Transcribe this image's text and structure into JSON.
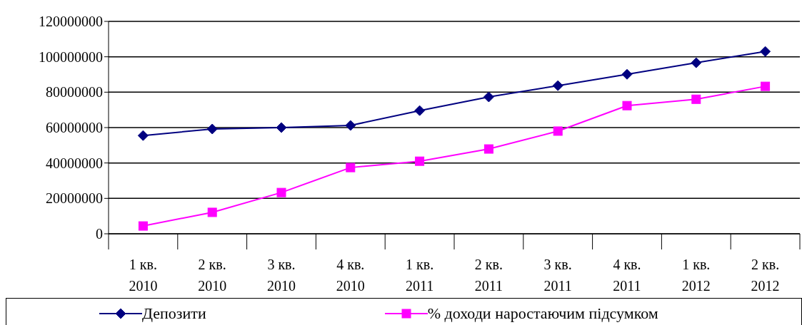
{
  "chart_data": {
    "type": "line",
    "categories": [
      "1 кв. 2010",
      "2 кв. 2010",
      "3 кв. 2010",
      "4 кв. 2010",
      "1 кв. 2011",
      "2 кв. 2011",
      "3 кв. 2011",
      "4 кв. 2011",
      "1 кв. 2012",
      "2 кв. 2012"
    ],
    "series": [
      {
        "name": "Депозити",
        "color": "#000080",
        "marker": "diamond",
        "values": [
          55500000,
          59200000,
          60000000,
          61200000,
          69600000,
          77300000,
          83700000,
          90100000,
          96600000,
          103000000
        ]
      },
      {
        "name": "% доходи наростаючим підсумком",
        "color": "#ff00ff",
        "marker": "square",
        "values": [
          4400000,
          12100000,
          23300000,
          37400000,
          41000000,
          47900000,
          58000000,
          72400000,
          76000000,
          83300000
        ]
      }
    ],
    "ylim": [
      0,
      120000000
    ],
    "yticks": [
      0,
      20000000,
      40000000,
      60000000,
      80000000,
      100000000,
      120000000
    ],
    "grid": "y",
    "legend": "bottom"
  }
}
